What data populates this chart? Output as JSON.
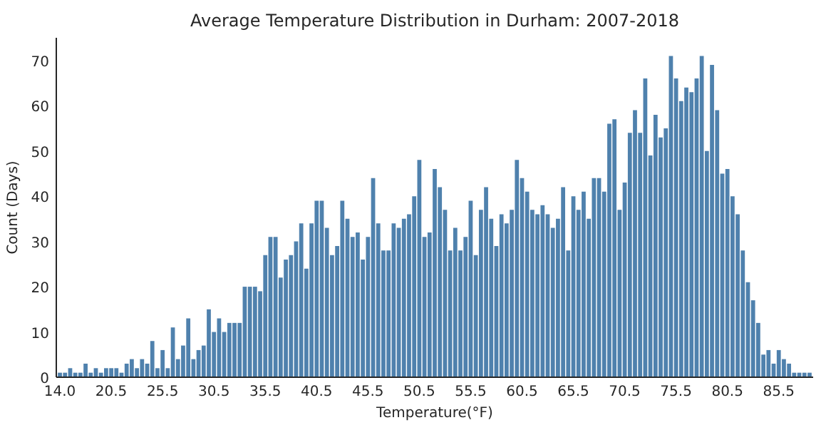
{
  "chart_data": {
    "type": "bar",
    "title": "Average Temperature Distribution in Durham: 2007-2018",
    "xlabel": "Temperature(°F)",
    "ylabel": "Count (Days)",
    "categories": [
      "14.0",
      null,
      null,
      null,
      null,
      null,
      null,
      null,
      null,
      null,
      "20.5",
      null,
      null,
      null,
      null,
      null,
      null,
      null,
      null,
      null,
      "25.5",
      null,
      null,
      null,
      null,
      null,
      null,
      null,
      null,
      null,
      "30.5",
      null,
      null,
      null,
      null,
      null,
      null,
      null,
      null,
      null,
      "35.5",
      null,
      null,
      null,
      null,
      null,
      null,
      null,
      null,
      null,
      "40.5",
      null,
      null,
      null,
      null,
      null,
      null,
      null,
      null,
      null,
      "45.5",
      null,
      null,
      null,
      null,
      null,
      null,
      null,
      null,
      null,
      "50.5",
      null,
      null,
      null,
      null,
      null,
      null,
      null,
      null,
      null,
      "55.5",
      null,
      null,
      null,
      null,
      null,
      null,
      null,
      null,
      null,
      "60.5",
      null,
      null,
      null,
      null,
      null,
      null,
      null,
      null,
      null,
      "65.5",
      null,
      null,
      null,
      null,
      null,
      null,
      null,
      null,
      null,
      "70.5",
      null,
      null,
      null,
      null,
      null,
      null,
      null,
      null,
      null,
      "75.5",
      null,
      null,
      null,
      null,
      null,
      null,
      null,
      null,
      null,
      "80.5",
      null,
      null,
      null,
      null,
      null,
      null,
      null,
      null,
      null,
      "85.5",
      null,
      null,
      null,
      null,
      null,
      null
    ],
    "values": [
      1,
      1,
      2,
      1,
      1,
      3,
      1,
      2,
      1,
      2,
      2,
      2,
      1,
      3,
      4,
      2,
      4,
      3,
      8,
      2,
      6,
      2,
      11,
      4,
      7,
      13,
      4,
      6,
      7,
      15,
      10,
      13,
      10,
      12,
      12,
      12,
      20,
      20,
      20,
      19,
      27,
      31,
      31,
      22,
      26,
      27,
      30,
      34,
      24,
      34,
      39,
      39,
      33,
      27,
      29,
      39,
      35,
      31,
      32,
      26,
      31,
      44,
      34,
      28,
      28,
      34,
      33,
      35,
      36,
      40,
      48,
      31,
      32,
      46,
      42,
      37,
      28,
      33,
      28,
      31,
      39,
      27,
      37,
      42,
      35,
      29,
      36,
      34,
      37,
      48,
      44,
      41,
      37,
      36,
      38,
      36,
      33,
      35,
      42,
      28,
      40,
      37,
      41,
      35,
      44,
      44,
      41,
      56,
      57,
      37,
      43,
      54,
      59,
      54,
      66,
      49,
      58,
      53,
      55,
      71,
      66,
      61,
      64,
      63,
      66,
      71,
      50,
      69,
      59,
      45,
      46,
      40,
      36,
      28,
      21,
      17,
      12,
      5,
      6,
      3,
      6,
      4,
      3,
      1,
      1,
      1,
      1
    ],
    "color": "#4f81ad",
    "ylim": [
      0,
      75
    ],
    "yticks": [
      0,
      10,
      20,
      30,
      40,
      50,
      60,
      70
    ]
  }
}
